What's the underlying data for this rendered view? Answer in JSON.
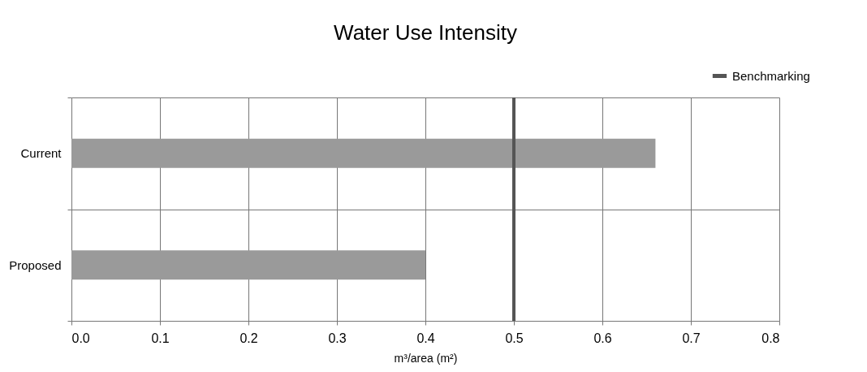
{
  "chart_data": {
    "type": "bar",
    "orientation": "horizontal",
    "title": "Water Use Intensity",
    "xlabel": "m³/area (m²)",
    "categories": [
      "Current",
      "Proposed"
    ],
    "values": [
      0.66,
      0.4
    ],
    "color": "#9a9a9a",
    "xlim": [
      0,
      0.8
    ],
    "xticks": [
      {
        "value": 0,
        "label": "0.0"
      },
      0.1,
      0.2,
      0.3,
      0.4,
      0.5,
      0.6,
      0.7,
      0.8
    ],
    "ref_lines": [
      {
        "axis": "x",
        "value": 0.5,
        "label": "Benchmarking",
        "color": "#555555"
      }
    ],
    "grid": true,
    "legend": "top right"
  }
}
